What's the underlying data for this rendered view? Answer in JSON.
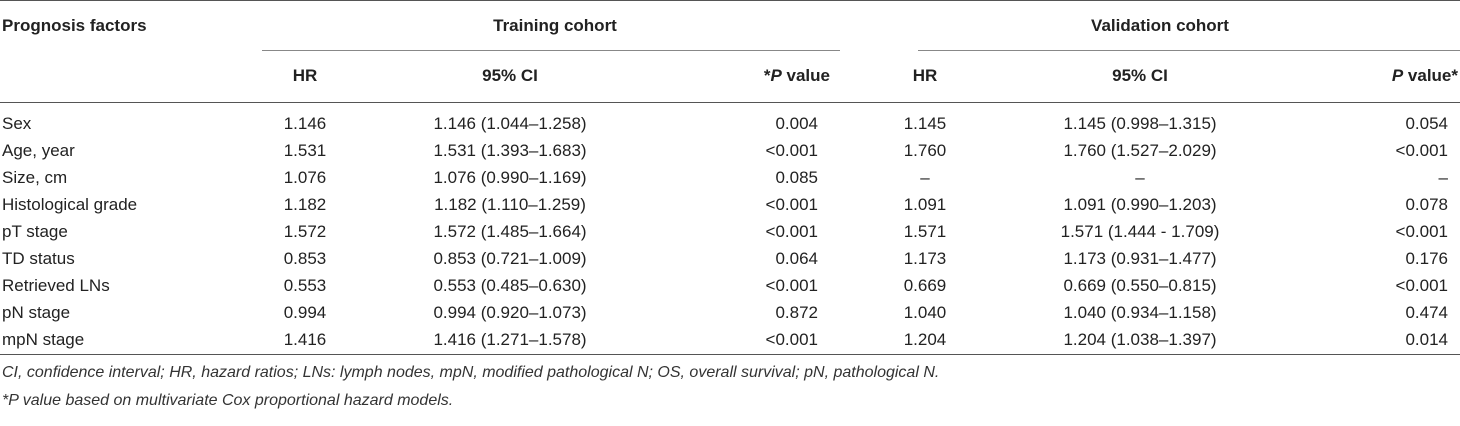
{
  "table": {
    "header": {
      "factor": "Prognosis factors",
      "training": "Training cohort",
      "validation": "Validation cohort",
      "hr": "HR",
      "ci": "95% CI",
      "p_train_star": "*",
      "p_train_italic": "P",
      "p_train_rest": " value",
      "hr_v": "HR",
      "ci_v": "95% CI",
      "p_val_italic": "P",
      "p_val_rest": " value*"
    },
    "rows": [
      {
        "factor": "Sex",
        "hr": "1.146",
        "ci": "1.146 (1.044–1.258)",
        "p": "0.004",
        "hr_v": "1.145",
        "ci_v": "1.145 (0.998–1.315)",
        "p_v": "0.054"
      },
      {
        "factor": "Age, year",
        "hr": "1.531",
        "ci": "1.531 (1.393–1.683)",
        "p": "<0.001",
        "hr_v": "1.760",
        "ci_v": "1.760 (1.527–2.029)",
        "p_v": "<0.001"
      },
      {
        "factor": "Size, cm",
        "hr": "1.076",
        "ci": "1.076 (0.990–1.169)",
        "p": "0.085",
        "hr_v": "–",
        "ci_v": "–",
        "p_v": "–"
      },
      {
        "factor": "Histological grade",
        "hr": "1.182",
        "ci": "1.182 (1.110–1.259)",
        "p": "<0.001",
        "hr_v": "1.091",
        "ci_v": "1.091 (0.990–1.203)",
        "p_v": "0.078"
      },
      {
        "factor": "pT stage",
        "hr": "1.572",
        "ci": "1.572 (1.485–1.664)",
        "p": "<0.001",
        "hr_v": "1.571",
        "ci_v": "1.571 (1.444 - 1.709)",
        "p_v": "<0.001"
      },
      {
        "factor": "TD status",
        "hr": "0.853",
        "ci": "0.853 (0.721–1.009)",
        "p": "0.064",
        "hr_v": "1.173",
        "ci_v": "1.173 (0.931–1.477)",
        "p_v": "0.176"
      },
      {
        "factor": "Retrieved LNs",
        "hr": "0.553",
        "ci": "0.553 (0.485–0.630)",
        "p": "<0.001",
        "hr_v": "0.669",
        "ci_v": "0.669 (0.550–0.815)",
        "p_v": "<0.001"
      },
      {
        "factor": "pN stage",
        "hr": "0.994",
        "ci": "0.994 (0.920–1.073)",
        "p": "0.872",
        "hr_v": "1.040",
        "ci_v": "1.040 (0.934–1.158)",
        "p_v": "0.474"
      },
      {
        "factor": "mpN stage",
        "hr": "1.416",
        "ci": "1.416 (1.271–1.578)",
        "p": "<0.001",
        "hr_v": "1.204",
        "ci_v": "1.204 (1.038–1.397)",
        "p_v": "0.014"
      }
    ]
  },
  "footnotes": {
    "abbrev": "CI, confidence interval; HR, hazard ratios; LNs: lymph nodes, mpN, modified pathological N; OS, overall survival; pN, pathological N.",
    "pvalue": "*P value based on multivariate Cox proportional hazard models."
  }
}
